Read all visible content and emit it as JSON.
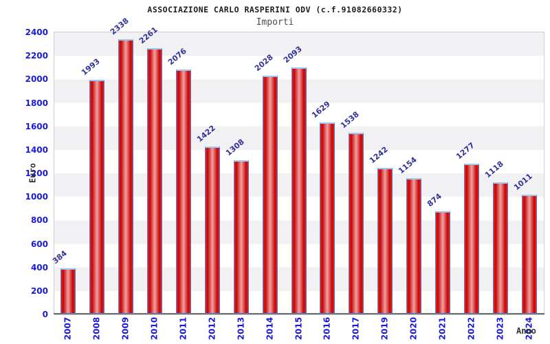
{
  "header": {
    "title": "ASSOCIAZIONE CARLO RASPERINI ODV (c.f.91082660332)",
    "subtitle": "Importi"
  },
  "chart_data": {
    "type": "bar",
    "title": "ASSOCIAZIONE CARLO RASPERINI ODV (c.f.91082660332)",
    "subtitle": "Importi",
    "xlabel": "Anno",
    "ylabel": "Euro",
    "categories": [
      "2007",
      "2008",
      "2009",
      "2010",
      "2011",
      "2012",
      "2013",
      "2014",
      "2015",
      "2016",
      "2017",
      "2019",
      "2020",
      "2021",
      "2022",
      "2023",
      "2024"
    ],
    "values": [
      384,
      1993,
      2338,
      2261,
      2076,
      1422,
      1308,
      2028,
      2093,
      1629,
      1538,
      1242,
      1154,
      874,
      1277,
      1118,
      1011
    ],
    "ylim": [
      0,
      2400
    ],
    "ytick_step": 200,
    "ytick_labels": [
      "0",
      "200",
      "400",
      "600",
      "800",
      "1000",
      "1200",
      "1400",
      "1600",
      "1800",
      "2000",
      "2200",
      "2400"
    ],
    "legend": "none",
    "grid": "alternating horizontal bands of 200 units (white / light gray), no vertical gridlines",
    "value_label_rotation_deg": -40,
    "category_label_rotation_deg": -90,
    "colors": {
      "bar_fill_edge": "#ee2222",
      "bar_fill_dark": "#c40505",
      "bar_fill_center": "#f2a2a2",
      "bar_border": "#4a86d8",
      "bar_top_cap": "#9ec5ef",
      "axis_tick_label": "#1a1ad8",
      "value_label": "#32329b",
      "band_white": "#ffffff",
      "band_gray": "#f1f1f3",
      "axis_title": "#333333",
      "plot_border": "#cfcfcf",
      "x_axis_line": "#6e6e6e"
    }
  }
}
